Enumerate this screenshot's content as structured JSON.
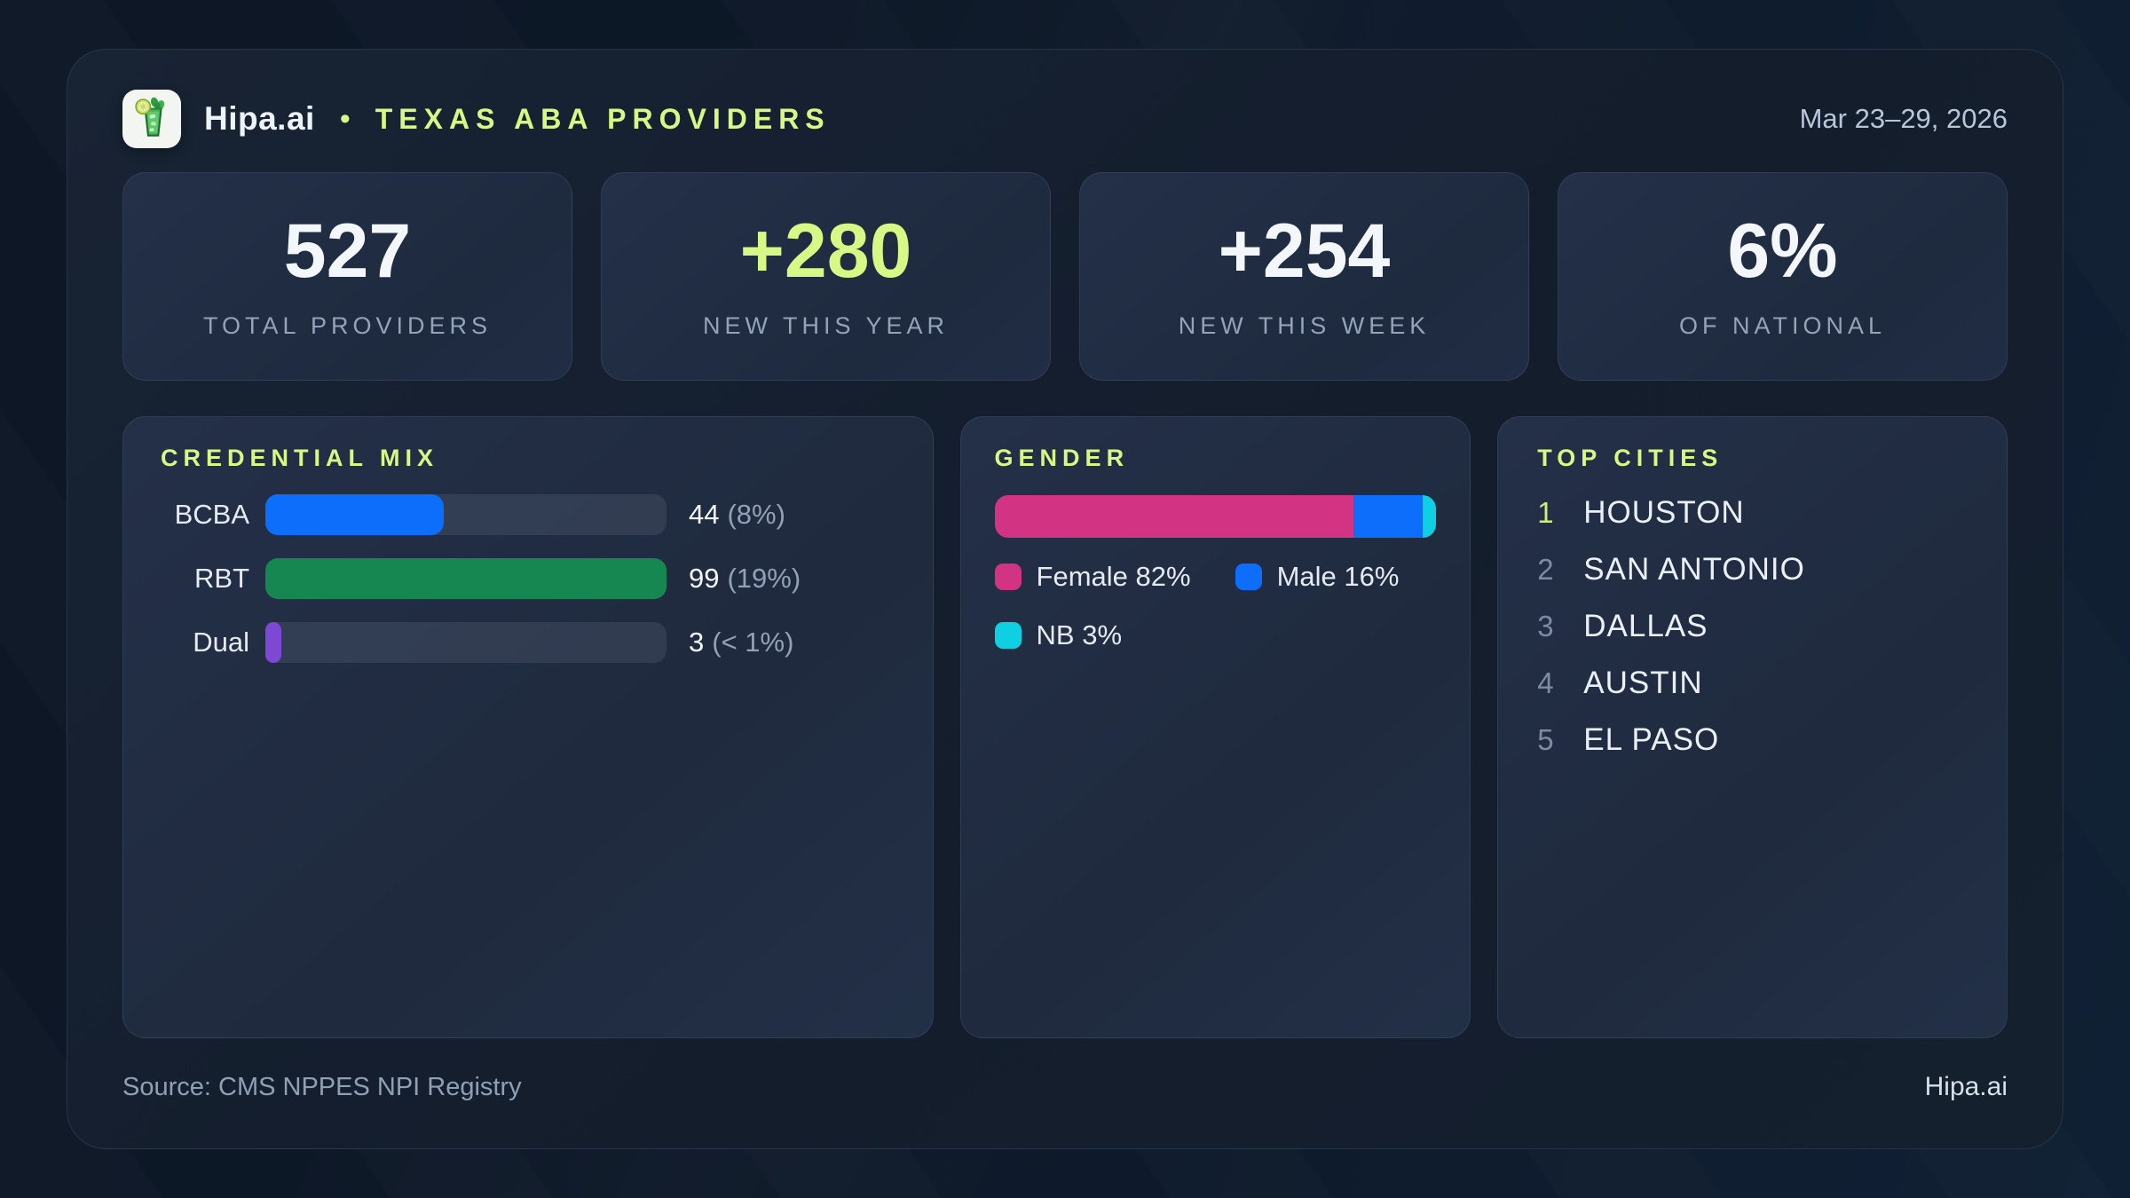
{
  "header": {
    "brand": "Hipa.ai",
    "separator": "•",
    "title": "TEXAS ABA PROVIDERS",
    "date_range": "Mar 23–29, 2026",
    "logo_icon": "mojito-glass-icon"
  },
  "stats": [
    {
      "value": "527",
      "label": "TOTAL PROVIDERS",
      "value_color": "#f4f7fa"
    },
    {
      "value": "+280",
      "label": "NEW THIS YEAR",
      "value_color": "#d7f884"
    },
    {
      "value": "+254",
      "label": "NEW THIS WEEK",
      "value_color": "#f4f7fa"
    },
    {
      "value": "6%",
      "label": "OF NATIONAL",
      "value_color": "#f4f7fa"
    }
  ],
  "credential_mix": {
    "title": "CREDENTIAL MIX",
    "rows": [
      {
        "label": "BCBA",
        "value": "44",
        "pct_label": "(8%)",
        "fill_pct": 44.4,
        "color": "#0e6efc"
      },
      {
        "label": "RBT",
        "value": "99",
        "pct_label": "(19%)",
        "fill_pct": 100,
        "color": "#178752"
      },
      {
        "label": "Dual",
        "value": "3",
        "pct_label": "(< 1%)",
        "fill_pct": 4,
        "color": "#7c48d4"
      }
    ]
  },
  "gender": {
    "title": "GENDER",
    "segments": [
      {
        "name": "Female",
        "pct": 82,
        "color": "#d23483"
      },
      {
        "name": "Male",
        "pct": 16,
        "color": "#0e6efc"
      },
      {
        "name": "NB",
        "pct": 3,
        "color": "#0fcfe2"
      }
    ],
    "legend": [
      {
        "text": "Female 82%",
        "color": "#d23483"
      },
      {
        "text": "Male 16%",
        "color": "#0e6efc"
      },
      {
        "text": "NB 3%",
        "color": "#0fcfe2"
      }
    ]
  },
  "top_cities": {
    "title": "TOP CITIES",
    "items": [
      {
        "rank": "1",
        "name": "HOUSTON",
        "rank_color": "#cdef7a"
      },
      {
        "rank": "2",
        "name": "SAN ANTONIO",
        "rank_color": "#7d8ca3"
      },
      {
        "rank": "3",
        "name": "DALLAS",
        "rank_color": "#7d8ca3"
      },
      {
        "rank": "4",
        "name": "AUSTIN",
        "rank_color": "#7d8ca3"
      },
      {
        "rank": "5",
        "name": "EL PASO",
        "rank_color": "#7d8ca3"
      }
    ]
  },
  "footer": {
    "source": "Source: CMS NPPES NPI Registry",
    "brand": "Hipa.ai"
  },
  "colors": {
    "accent_lime": "#d7f884",
    "panel_bg": "#212d43",
    "page_bg": "#0d1726",
    "muted_text": "#93a3b8"
  },
  "chart_data": [
    {
      "type": "bar",
      "title": "CREDENTIAL MIX",
      "orientation": "horizontal",
      "categories": [
        "BCBA",
        "RBT",
        "Dual"
      ],
      "values": [
        44,
        99,
        3
      ],
      "value_labels": [
        "44 (8%)",
        "99 (19%)",
        "3 (< 1%)"
      ],
      "pcts_of_total": [
        8,
        19,
        0.6
      ],
      "bar_colors": [
        "#0e6efc",
        "#178752",
        "#7c48d4"
      ],
      "xlim": [
        0,
        99
      ],
      "grid": false
    },
    {
      "type": "bar",
      "subtype": "stacked-single",
      "title": "GENDER",
      "categories": [
        "Gender"
      ],
      "series": [
        {
          "name": "Female",
          "values": [
            82
          ],
          "color": "#d23483"
        },
        {
          "name": "Male",
          "values": [
            16
          ],
          "color": "#0e6efc"
        },
        {
          "name": "NB",
          "values": [
            3
          ],
          "color": "#0fcfe2"
        }
      ],
      "legend_position": "below",
      "grid": false
    },
    {
      "type": "table",
      "title": "TOP CITIES",
      "columns": [
        "rank",
        "city"
      ],
      "rows": [
        [
          1,
          "HOUSTON"
        ],
        [
          2,
          "SAN ANTONIO"
        ],
        [
          3,
          "DALLAS"
        ],
        [
          4,
          "AUSTIN"
        ],
        [
          5,
          "EL PASO"
        ]
      ]
    }
  ]
}
